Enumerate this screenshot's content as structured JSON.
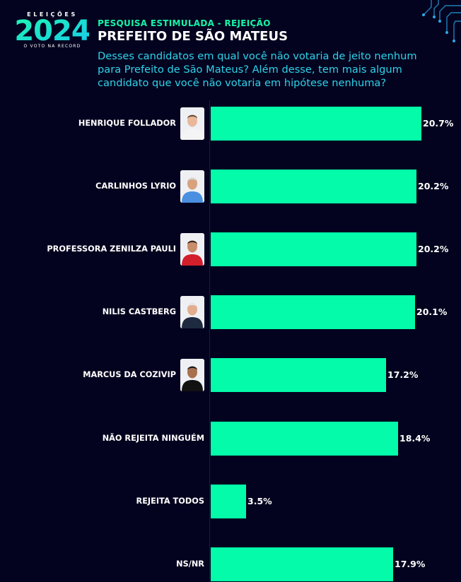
{
  "logo": {
    "top": "ELEIÇÕES",
    "year": "2024",
    "bottom": "O VOTO NA RECORD"
  },
  "header": {
    "subtitle": "PESQUISA ESTIMULADA - REJEIÇÃO",
    "title": "PREFEITO DE SÃO MATEUS",
    "question": "Desses candidatos em qual você não votaria de jeito nenhum para Prefeito de São Mateus? Além desse, tem mais algum candidato que você não votaria em hipótese nenhuma?"
  },
  "colors": {
    "background": "#03031f",
    "bar": "#03fba9",
    "subtitle": "#16f5a8",
    "question": "#2fd3ea"
  },
  "chart_data": {
    "type": "bar",
    "orientation": "horizontal",
    "title": "PREFEITO DE SÃO MATEUS",
    "categories": [
      "HENRIQUE FOLLADOR",
      "CARLINHOS LYRIO",
      "PROFESSORA ZENILZA PAULI",
      "NILIS CASTBERG",
      "MARCUS DA COZIVIP",
      "NÃO REJEITA NINGUÉM",
      "REJEITA TODOS",
      "NS/NR"
    ],
    "values": [
      20.7,
      20.2,
      20.2,
      20.1,
      17.2,
      18.4,
      3.5,
      17.9
    ],
    "value_labels": [
      "20.7%",
      "20.2%",
      "20.2%",
      "20.1%",
      "17.2%",
      "18.4%",
      "3.5%",
      "17.9%"
    ],
    "has_photo": [
      true,
      true,
      true,
      true,
      true,
      false,
      false,
      false
    ],
    "xlim": [
      0,
      20.7
    ],
    "grid": false,
    "legend": "none"
  }
}
